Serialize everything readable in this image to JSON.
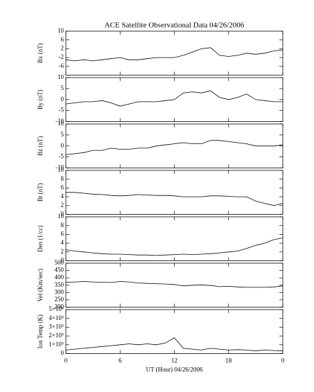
{
  "chart_data": [
    {
      "type": "line",
      "title": "ACE Satellite Observational Data   04/26/2006",
      "ylabel": "Bx (nT)",
      "color": "#000000",
      "x": [
        0,
        1,
        2,
        3,
        4,
        5,
        6,
        7,
        8,
        9,
        10,
        11,
        12,
        13,
        14,
        15,
        16,
        17,
        18,
        19,
        20,
        21,
        22,
        23,
        24
      ],
      "values": [
        -3,
        -3.5,
        -3,
        -3.5,
        -3,
        -2.5,
        -2,
        -3,
        -3,
        -2.5,
        -2,
        -2,
        -2,
        -1,
        0.5,
        2,
        2.5,
        -1,
        -1.5,
        -1,
        0,
        -0.5,
        0,
        1,
        1.5
      ],
      "xlim": [
        0,
        24
      ],
      "xticks": [
        0,
        6,
        12,
        18,
        {
          "value": 24,
          "label": "0"
        }
      ],
      "ylim": [
        -10,
        10
      ],
      "yticks": [
        -6,
        -2,
        2,
        6,
        10
      ]
    },
    {
      "type": "line",
      "ylabel": "By (nT)",
      "color": "#000000",
      "x": [
        0,
        1,
        2,
        3,
        4,
        5,
        6,
        7,
        8,
        9,
        10,
        11,
        12,
        13,
        14,
        15,
        16,
        17,
        18,
        19,
        20,
        21,
        22,
        23,
        24
      ],
      "values": [
        -2,
        -1.5,
        -1,
        -1,
        -0.5,
        -1.5,
        -3,
        -2,
        -1,
        -1,
        -1,
        -0.5,
        0,
        3,
        3.5,
        3,
        4,
        1,
        0,
        1,
        2.5,
        0,
        -0.5,
        -1,
        -1
      ],
      "xlim": [
        0,
        24
      ],
      "xticks": [
        0,
        6,
        12,
        18,
        {
          "value": 24,
          "label": "0"
        }
      ],
      "ylim": [
        -10,
        10
      ],
      "yticks": [
        -10,
        -5,
        0,
        5,
        10
      ]
    },
    {
      "type": "line",
      "ylabel": "Bz (nT)",
      "color": "#000000",
      "x": [
        0,
        1,
        2,
        3,
        4,
        5,
        6,
        7,
        8,
        9,
        10,
        11,
        12,
        13,
        14,
        15,
        16,
        17,
        18,
        19,
        20,
        21,
        22,
        23,
        24
      ],
      "values": [
        -4,
        -3.5,
        -3,
        -2,
        -2,
        -1,
        -1.5,
        -1.5,
        -1,
        -1,
        0,
        0.5,
        1,
        1.5,
        1,
        1,
        2.5,
        2.5,
        2,
        1.5,
        1,
        0,
        0,
        0,
        0.5
      ],
      "xlim": [
        0,
        24
      ],
      "xticks": [
        0,
        6,
        12,
        18,
        {
          "value": 24,
          "label": "0"
        }
      ],
      "ylim": [
        -10,
        10
      ],
      "yticks": [
        -10,
        -5,
        0,
        5,
        10
      ]
    },
    {
      "type": "line",
      "ylabel": "Bt (nT)",
      "color": "#000000",
      "x": [
        0,
        1,
        2,
        3,
        4,
        5,
        6,
        7,
        8,
        9,
        10,
        11,
        12,
        13,
        14,
        15,
        16,
        17,
        18,
        19,
        20,
        21,
        22,
        23,
        24
      ],
      "values": [
        5,
        5,
        4.8,
        4.6,
        4.5,
        4.3,
        4.2,
        4.3,
        4.5,
        4.4,
        4.3,
        4.3,
        4.2,
        4,
        4,
        4,
        4.2,
        4.2,
        4.1,
        4,
        4,
        3,
        2.5,
        2,
        2.5
      ],
      "xlim": [
        0,
        24
      ],
      "xticks": [
        0,
        6,
        12,
        18,
        {
          "value": 24,
          "label": "0"
        }
      ],
      "ylim": [
        0,
        10
      ],
      "yticks": [
        0,
        2,
        4,
        6,
        8,
        10
      ]
    },
    {
      "type": "line",
      "ylabel": "Den (1/cc)",
      "color": "#000000",
      "x": [
        0,
        1,
        2,
        3,
        4,
        5,
        6,
        7,
        8,
        9,
        10,
        11,
        12,
        13,
        14,
        15,
        16,
        17,
        18,
        19,
        20,
        21,
        22,
        23,
        24
      ],
      "values": [
        2.5,
        2.2,
        2,
        1.8,
        1.6,
        1.5,
        1.5,
        1.4,
        1.3,
        1.3,
        1.2,
        1.3,
        1.4,
        1.5,
        1.4,
        1.5,
        1.6,
        1.8,
        2,
        2.2,
        2.8,
        3.5,
        4,
        4.8,
        5.2
      ],
      "xlim": [
        0,
        24
      ],
      "xticks": [
        0,
        6,
        12,
        18,
        {
          "value": 24,
          "label": "0"
        }
      ],
      "ylim": [
        0,
        10
      ],
      "yticks": [
        0,
        2,
        4,
        6,
        8,
        10
      ]
    },
    {
      "type": "line",
      "ylabel": "Vel (Km/sec)",
      "color": "#000000",
      "x": [
        0,
        1,
        2,
        3,
        4,
        5,
        6,
        7,
        8,
        9,
        10,
        11,
        12,
        13,
        14,
        15,
        16,
        17,
        18,
        19,
        20,
        21,
        22,
        23,
        24
      ],
      "values": [
        370,
        372,
        375,
        372,
        370,
        368,
        375,
        372,
        365,
        362,
        360,
        358,
        355,
        345,
        350,
        352,
        348,
        340,
        342,
        338,
        335,
        335,
        335,
        338,
        345
      ],
      "xlim": [
        0,
        24
      ],
      "xticks": [
        0,
        6,
        12,
        18,
        {
          "value": 24,
          "label": "0"
        }
      ],
      "ylim": [
        200,
        500
      ],
      "yticks": [
        200,
        250,
        300,
        350,
        400,
        450,
        500
      ]
    },
    {
      "type": "line",
      "ylabel": "Ion Temp (K)",
      "xlabel": "UT (Hour)   04/26/2006",
      "color": "#000000",
      "x": [
        0,
        1,
        2,
        3,
        4,
        5,
        6,
        7,
        8,
        9,
        10,
        11,
        12,
        13,
        14,
        15,
        16,
        17,
        18,
        19,
        20,
        21,
        22,
        23,
        24
      ],
      "values": [
        40000,
        50000,
        60000,
        70000,
        80000,
        90000,
        100000,
        110000,
        100000,
        110000,
        100000,
        120000,
        180000,
        60000,
        50000,
        40000,
        60000,
        50000,
        40000,
        45000,
        40000,
        30000,
        40000,
        35000,
        30000
      ],
      "xlim": [
        0,
        24
      ],
      "xticks": [
        0,
        6,
        12,
        18,
        {
          "value": 24,
          "label": "0"
        }
      ],
      "ylim": [
        0,
        500000
      ],
      "yticks": [
        0,
        {
          "value": 100000,
          "label": "1×10⁵"
        },
        {
          "value": 200000,
          "label": "2×10⁵"
        },
        {
          "value": 300000,
          "label": "3×10⁵"
        },
        {
          "value": 400000,
          "label": "4×10⁵"
        },
        {
          "value": 500000,
          "label": "5×10⁵"
        }
      ]
    }
  ]
}
